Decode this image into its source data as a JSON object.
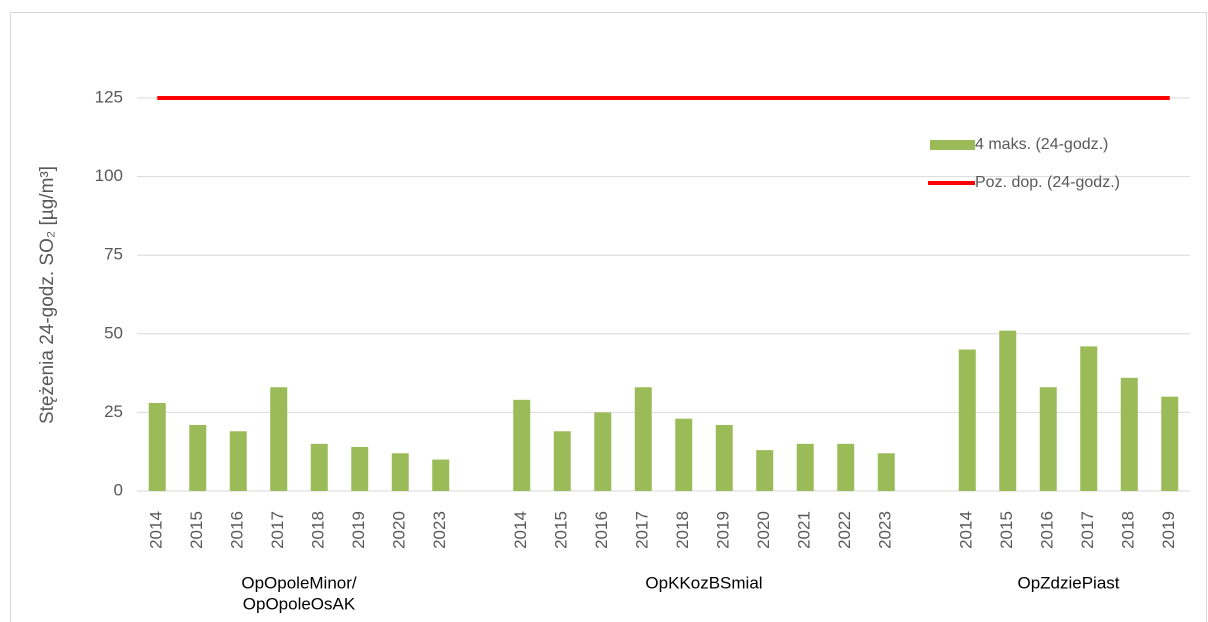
{
  "chart_data": {
    "type": "bar",
    "y_label": "Stężenia 24-godz. SO₂ [µg/m³]",
    "categories": [
      "2014",
      "2015",
      "2016",
      "2017",
      "2018",
      "2019",
      "2020",
      "2023",
      null,
      "2014",
      "2015",
      "2016",
      "2017",
      "2018",
      "2019",
      "2020",
      "2021",
      "2022",
      "2023",
      null,
      "2014",
      "2015",
      "2016",
      "2017",
      "2018",
      "2019"
    ],
    "groups": [
      [
        "OpOpoleMinor/",
        "OpOpoleOsAK"
      ],
      [
        "OpKKozBSmial"
      ],
      [
        "OpZdziePiast"
      ]
    ],
    "series": [
      {
        "name": "4 maks. (24-godz.)",
        "type": "bar",
        "color": "#9bbb59",
        "values": [
          28,
          21,
          19,
          33,
          15,
          14,
          12,
          10,
          null,
          29,
          19,
          25,
          33,
          23,
          21,
          13,
          15,
          15,
          12,
          null,
          45,
          51,
          33,
          46,
          36,
          30
        ]
      },
      {
        "name": "Poz. dop. (24-godz.)",
        "type": "line",
        "color": "#ff0000",
        "values": [
          125,
          125,
          125,
          125,
          125,
          125,
          125,
          125,
          125,
          125,
          125,
          125,
          125,
          125,
          125,
          125,
          125,
          125,
          125,
          125,
          125,
          125,
          125,
          125,
          125,
          125
        ]
      }
    ],
    "ylim": [
      0,
      125
    ],
    "yticks": [
      0,
      25,
      50,
      75,
      100,
      125
    ],
    "grid": true,
    "legend": "top-right"
  }
}
